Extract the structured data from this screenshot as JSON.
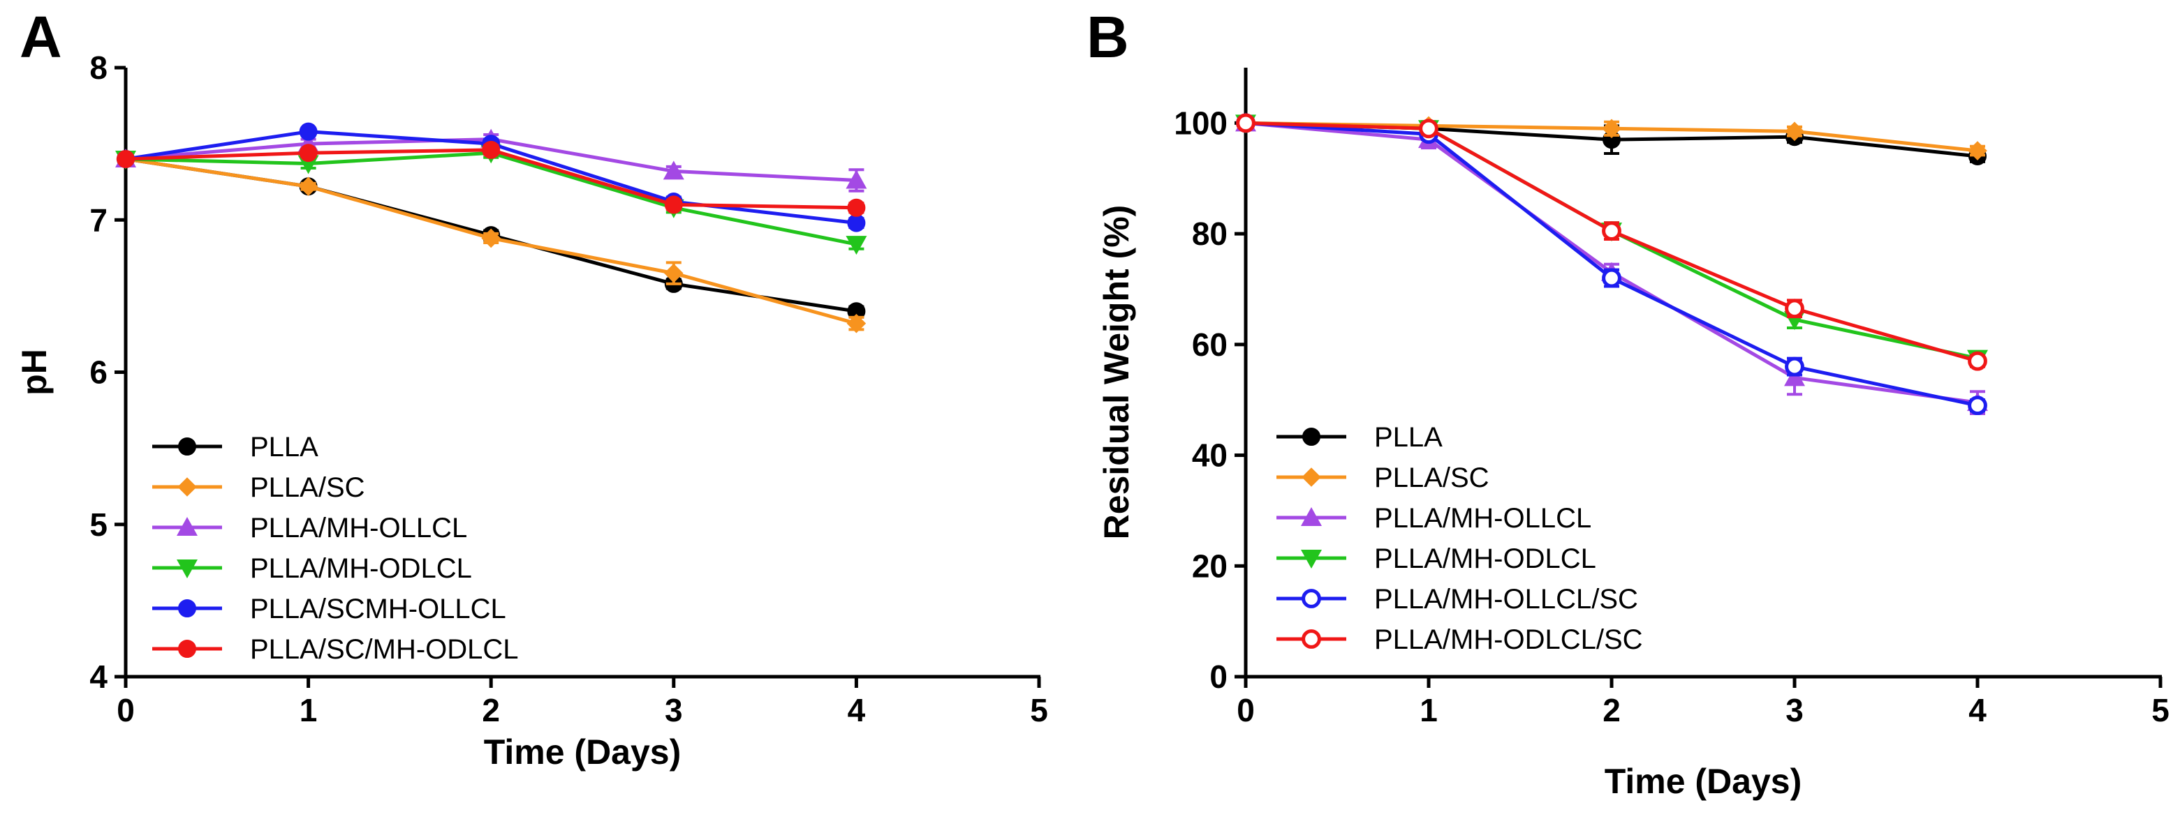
{
  "chart_data": [
    {
      "panel": "A",
      "type": "line",
      "title": "",
      "xlabel": "Time (Days)",
      "ylabel": "pH",
      "xlim": [
        0,
        5
      ],
      "ylim": [
        4,
        8
      ],
      "xticks": [
        0,
        1,
        2,
        3,
        4,
        5
      ],
      "yticks": [
        4,
        5,
        6,
        7,
        8
      ],
      "grid": false,
      "legend_position": "bottom-left",
      "x": [
        0,
        1,
        2,
        3,
        4
      ],
      "series": [
        {
          "name": "PLLA",
          "color": "#000000",
          "marker": "circle-filled",
          "values": [
            7.4,
            7.22,
            6.9,
            6.58,
            6.4
          ],
          "errors": [
            0,
            0.02,
            0.03,
            0.03,
            0.03
          ]
        },
        {
          "name": "PLLA/SC",
          "color": "#f7931e",
          "marker": "diamond-filled",
          "values": [
            7.4,
            7.22,
            6.88,
            6.65,
            6.32
          ],
          "errors": [
            0,
            0.02,
            0.03,
            0.07,
            0.04
          ]
        },
        {
          "name": "PLLA/MH-OLLCL",
          "color": "#a349e4",
          "marker": "triangle-up-filled",
          "values": [
            7.4,
            7.5,
            7.53,
            7.32,
            7.26
          ],
          "errors": [
            0,
            0.03,
            0.03,
            0.03,
            0.07
          ]
        },
        {
          "name": "PLLA/MH-ODLCL",
          "color": "#22c41c",
          "marker": "triangle-down-filled",
          "values": [
            7.4,
            7.37,
            7.44,
            7.08,
            6.84
          ],
          "errors": [
            0,
            0.03,
            0.03,
            0.03,
            0.03
          ]
        },
        {
          "name": "PLLA/SCMH-OLLCL",
          "color": "#1d1df0",
          "marker": "circle-filled",
          "values": [
            7.4,
            7.58,
            7.5,
            7.12,
            6.98
          ],
          "errors": [
            0,
            0.02,
            0.03,
            0.03,
            0.03
          ]
        },
        {
          "name": "PLLA/SC/MH-ODLCL",
          "color": "#f01717",
          "marker": "circle-filled",
          "values": [
            7.4,
            7.44,
            7.46,
            7.1,
            7.08
          ],
          "errors": [
            0,
            0.02,
            0.03,
            0.03,
            0.03
          ]
        }
      ]
    },
    {
      "panel": "B",
      "type": "line",
      "title": "",
      "xlabel": "Time (Days)",
      "ylabel": "Residual Weight (%)",
      "xlim": [
        0,
        5
      ],
      "ylim": [
        0,
        110
      ],
      "xticks": [
        0,
        1,
        2,
        3,
        4,
        5
      ],
      "yticks": [
        0,
        20,
        40,
        60,
        80,
        100
      ],
      "grid": false,
      "legend_position": "bottom-left",
      "x": [
        0,
        1,
        2,
        3,
        4
      ],
      "series": [
        {
          "name": "PLLA",
          "color": "#000000",
          "marker": "circle-filled",
          "values": [
            100,
            99,
            97,
            97.5,
            94
          ],
          "errors": [
            0,
            1.2,
            2.5,
            1.0,
            1.0
          ]
        },
        {
          "name": "PLLA/SC",
          "color": "#f7931e",
          "marker": "diamond-filled",
          "values": [
            100,
            99.5,
            99,
            98.5,
            95
          ],
          "errors": [
            0,
            0.8,
            1.2,
            0.8,
            0.8
          ]
        },
        {
          "name": "PLLA/MH-OLLCL",
          "color": "#a349e4",
          "marker": "triangle-up-filled",
          "values": [
            100,
            97,
            73,
            54,
            49.5
          ],
          "errors": [
            0,
            1.5,
            1.5,
            3.0,
            2.0
          ]
        },
        {
          "name": "PLLA/MH-ODLCL",
          "color": "#22c41c",
          "marker": "triangle-down-filled",
          "values": [
            100,
            99,
            80.5,
            64.5,
            57.5
          ],
          "errors": [
            0,
            1.0,
            1.5,
            1.5,
            1.0
          ]
        },
        {
          "name": "PLLA/MH-OLLCL/SC",
          "color": "#1d1df0",
          "marker": "circle-open",
          "values": [
            100,
            98,
            72,
            56,
            49
          ],
          "errors": [
            0,
            1.0,
            1.5,
            1.5,
            1.0
          ]
        },
        {
          "name": "PLLA/MH-ODLCL/SC",
          "color": "#f01717",
          "marker": "circle-open",
          "values": [
            100,
            99,
            80.5,
            66.5,
            57
          ],
          "errors": [
            0,
            1.0,
            1.5,
            1.5,
            1.0
          ]
        }
      ]
    }
  ]
}
